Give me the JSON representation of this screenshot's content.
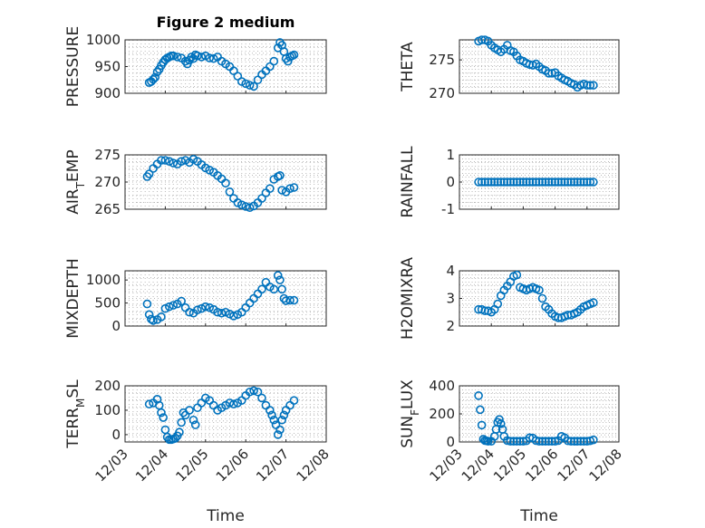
{
  "figure_title": "Figure 2 medium",
  "x_axis_label": "Time",
  "chart_data": [
    {
      "type": "scatter",
      "panel": "top-left",
      "ylabel": "PRESSURE",
      "title": "Figure 2 medium",
      "ylim": [
        900,
        1000
      ],
      "yticks": [
        "900",
        "950",
        "1000"
      ],
      "xlim": [
        0,
        5
      ],
      "xtick_labels": [
        "12/03",
        "12/04",
        "12/05",
        "12/06",
        "12/07",
        "12/08"
      ],
      "show_x_tick_labels": false,
      "grid": true,
      "series": [
        {
          "color": "#0072bd",
          "x": [
            0.6,
            0.65,
            0.7,
            0.75,
            0.8,
            0.85,
            0.9,
            0.95,
            1.0,
            1.05,
            1.1,
            1.15,
            1.2,
            1.3,
            1.4,
            1.5,
            1.55,
            1.6,
            1.65,
            1.7,
            1.75,
            1.8,
            1.9,
            2.0,
            2.1,
            2.2,
            2.3,
            2.4,
            2.5,
            2.6,
            2.7,
            2.8,
            2.9,
            3.0,
            3.1,
            3.2,
            3.3,
            3.4,
            3.5,
            3.6,
            3.7,
            3.8,
            3.85,
            3.9,
            3.95,
            4.0,
            4.05,
            4.1,
            4.15,
            4.2
          ],
          "y": [
            920,
            922,
            926,
            930,
            940,
            945,
            952,
            958,
            963,
            966,
            968,
            970,
            970,
            968,
            966,
            960,
            955,
            962,
            968,
            965,
            972,
            970,
            968,
            970,
            966,
            965,
            968,
            960,
            955,
            950,
            942,
            932,
            922,
            918,
            915,
            913,
            925,
            935,
            942,
            950,
            960,
            985,
            995,
            990,
            978,
            965,
            960,
            968,
            970,
            972
          ]
        }
      ]
    },
    {
      "type": "scatter",
      "panel": "top-right",
      "ylabel": "THETA",
      "ylim": [
        270,
        278
      ],
      "yticks": [
        "270",
        "275"
      ],
      "xlim": [
        0,
        5
      ],
      "xtick_labels": [
        "12/03",
        "12/04",
        "12/05",
        "12/06",
        "12/07",
        "12/08"
      ],
      "show_x_tick_labels": false,
      "grid": true,
      "series": [
        {
          "color": "#0072bd",
          "x": [
            0.6,
            0.7,
            0.8,
            0.9,
            1.0,
            1.1,
            1.2,
            1.3,
            1.4,
            1.5,
            1.6,
            1.7,
            1.8,
            1.9,
            2.0,
            2.1,
            2.2,
            2.3,
            2.4,
            2.5,
            2.6,
            2.7,
            2.8,
            2.9,
            3.0,
            3.1,
            3.2,
            3.3,
            3.4,
            3.5,
            3.6,
            3.7,
            3.8,
            3.9,
            4.0,
            4.1,
            4.2
          ],
          "y": [
            277.8,
            278.0,
            278.0,
            277.8,
            277.2,
            276.8,
            276.5,
            276.2,
            276.6,
            277.2,
            276.4,
            276.2,
            275.6,
            275.0,
            274.8,
            274.5,
            274.3,
            274.2,
            274.4,
            274.0,
            273.6,
            273.4,
            273.0,
            273.0,
            273.1,
            272.6,
            272.3,
            272.0,
            271.8,
            271.5,
            271.3,
            270.9,
            271.2,
            271.4,
            271.2,
            271.2,
            271.2
          ]
        }
      ]
    },
    {
      "type": "scatter",
      "panel": "row2-left",
      "ylabel": "AIR_TEMP",
      "ylim": [
        265,
        275
      ],
      "yticks": [
        "265",
        "270",
        "275"
      ],
      "xlim": [
        0,
        5
      ],
      "xtick_labels": [
        "12/03",
        "12/04",
        "12/05",
        "12/06",
        "12/07",
        "12/08"
      ],
      "show_x_tick_labels": false,
      "grid": true,
      "series": [
        {
          "color": "#0072bd",
          "x": [
            0.55,
            0.6,
            0.7,
            0.8,
            0.9,
            1.0,
            1.1,
            1.2,
            1.3,
            1.4,
            1.5,
            1.6,
            1.7,
            1.8,
            1.9,
            2.0,
            2.1,
            2.2,
            2.3,
            2.4,
            2.5,
            2.6,
            2.7,
            2.8,
            2.9,
            3.0,
            3.1,
            3.2,
            3.3,
            3.4,
            3.5,
            3.6,
            3.7,
            3.8,
            3.85,
            3.9,
            4.0,
            4.1,
            4.2
          ],
          "y": [
            271.0,
            271.5,
            272.5,
            273.3,
            274.0,
            274.0,
            273.8,
            273.5,
            273.3,
            273.8,
            274.0,
            273.6,
            274.2,
            273.8,
            273.2,
            272.6,
            272.2,
            271.8,
            271.2,
            270.6,
            269.8,
            268.2,
            267.0,
            266.2,
            265.8,
            265.5,
            265.3,
            265.6,
            266.2,
            267.0,
            268.0,
            268.8,
            270.5,
            271.0,
            271.2,
            268.5,
            268.2,
            268.8,
            269.0
          ]
        }
      ]
    },
    {
      "type": "scatter",
      "panel": "row2-right",
      "ylabel": "RAINFALL",
      "ylim": [
        -1,
        1
      ],
      "yticks": [
        "-1",
        "0",
        "1"
      ],
      "xlim": [
        0,
        5
      ],
      "xtick_labels": [
        "12/03",
        "12/04",
        "12/05",
        "12/06",
        "12/07",
        "12/08"
      ],
      "show_x_tick_labels": false,
      "grid": true,
      "series": [
        {
          "color": "#0072bd",
          "x": [
            0.6,
            0.7,
            0.8,
            0.9,
            1.0,
            1.1,
            1.2,
            1.3,
            1.4,
            1.5,
            1.6,
            1.7,
            1.8,
            1.9,
            2.0,
            2.1,
            2.2,
            2.3,
            2.4,
            2.5,
            2.6,
            2.7,
            2.8,
            2.9,
            3.0,
            3.1,
            3.2,
            3.3,
            3.4,
            3.5,
            3.6,
            3.7,
            3.8,
            3.9,
            4.0,
            4.1,
            4.2
          ],
          "y": [
            0,
            0,
            0,
            0,
            0,
            0,
            0,
            0,
            0,
            0,
            0,
            0,
            0,
            0,
            0,
            0,
            0,
            0,
            0,
            0,
            0,
            0,
            0,
            0,
            0,
            0,
            0,
            0,
            0,
            0,
            0,
            0,
            0,
            0,
            0,
            0,
            0
          ]
        }
      ]
    },
    {
      "type": "scatter",
      "panel": "row3-left",
      "ylabel": "MIXDEPTH",
      "ylim": [
        0,
        1200
      ],
      "yticks": [
        "0",
        "500",
        "1000"
      ],
      "xlim": [
        0,
        5
      ],
      "xtick_labels": [
        "12/03",
        "12/04",
        "12/05",
        "12/06",
        "12/07",
        "12/08"
      ],
      "show_x_tick_labels": false,
      "grid": true,
      "series": [
        {
          "color": "#0072bd",
          "x": [
            0.55,
            0.6,
            0.65,
            0.7,
            0.8,
            0.9,
            1.0,
            1.1,
            1.2,
            1.3,
            1.4,
            1.5,
            1.6,
            1.7,
            1.8,
            1.9,
            2.0,
            2.1,
            2.2,
            2.3,
            2.4,
            2.5,
            2.6,
            2.7,
            2.8,
            2.9,
            3.0,
            3.1,
            3.2,
            3.3,
            3.4,
            3.5,
            3.6,
            3.7,
            3.8,
            3.85,
            3.9,
            3.95,
            4.0,
            4.1,
            4.2
          ],
          "y": [
            480,
            250,
            150,
            120,
            140,
            200,
            380,
            420,
            450,
            480,
            540,
            400,
            300,
            280,
            350,
            380,
            420,
            400,
            360,
            300,
            280,
            300,
            260,
            220,
            250,
            300,
            400,
            500,
            600,
            700,
            800,
            950,
            850,
            800,
            1100,
            1000,
            800,
            600,
            550,
            560,
            560
          ]
        }
      ]
    },
    {
      "type": "scatter",
      "panel": "row3-right",
      "ylabel": "H2OMIXRA",
      "ylim": [
        2,
        4
      ],
      "yticks": [
        "2",
        "3",
        "4"
      ],
      "xlim": [
        0,
        5
      ],
      "xtick_labels": [
        "12/03",
        "12/04",
        "12/05",
        "12/06",
        "12/07",
        "12/08"
      ],
      "show_x_tick_labels": false,
      "grid": true,
      "series": [
        {
          "color": "#0072bd",
          "x": [
            0.6,
            0.7,
            0.8,
            0.9,
            1.0,
            1.1,
            1.2,
            1.3,
            1.4,
            1.5,
            1.6,
            1.7,
            1.8,
            1.9,
            2.0,
            2.1,
            2.2,
            2.3,
            2.4,
            2.5,
            2.6,
            2.7,
            2.8,
            2.9,
            3.0,
            3.1,
            3.2,
            3.3,
            3.4,
            3.5,
            3.6,
            3.7,
            3.8,
            3.9,
            4.0,
            4.1,
            4.2
          ],
          "y": [
            2.6,
            2.6,
            2.55,
            2.55,
            2.5,
            2.6,
            2.8,
            3.1,
            3.3,
            3.45,
            3.6,
            3.8,
            3.85,
            3.4,
            3.35,
            3.3,
            3.35,
            3.4,
            3.35,
            3.3,
            3.0,
            2.7,
            2.6,
            2.45,
            2.35,
            2.3,
            2.3,
            2.35,
            2.4,
            2.4,
            2.45,
            2.5,
            2.6,
            2.7,
            2.75,
            2.8,
            2.85
          ]
        }
      ]
    },
    {
      "type": "scatter",
      "panel": "bottom-left",
      "ylabel": "TERR_MSL",
      "ylim": [
        -30,
        200
      ],
      "yticks": [
        "0",
        "100",
        "200"
      ],
      "xlim": [
        0,
        5
      ],
      "xtick_labels": [
        "12/03",
        "12/04",
        "12/05",
        "12/06",
        "12/07",
        "12/08"
      ],
      "show_x_tick_labels": true,
      "grid": true,
      "series": [
        {
          "color": "#0072bd",
          "x": [
            0.6,
            0.7,
            0.8,
            0.85,
            0.9,
            0.95,
            1.0,
            1.05,
            1.1,
            1.15,
            1.2,
            1.25,
            1.3,
            1.35,
            1.4,
            1.45,
            1.5,
            1.6,
            1.7,
            1.75,
            1.8,
            1.9,
            2.0,
            2.1,
            2.2,
            2.3,
            2.4,
            2.5,
            2.6,
            2.7,
            2.8,
            2.9,
            3.0,
            3.1,
            3.2,
            3.3,
            3.4,
            3.5,
            3.6,
            3.65,
            3.7,
            3.75,
            3.8,
            3.85,
            3.9,
            3.95,
            4.0,
            4.1,
            4.2
          ],
          "y": [
            125,
            130,
            145,
            120,
            90,
            70,
            20,
            -10,
            -20,
            -20,
            -18,
            -15,
            -5,
            10,
            50,
            90,
            80,
            100,
            60,
            40,
            110,
            130,
            150,
            140,
            120,
            100,
            110,
            120,
            130,
            125,
            130,
            140,
            160,
            175,
            180,
            175,
            150,
            120,
            100,
            80,
            60,
            40,
            0,
            20,
            60,
            80,
            100,
            120,
            140
          ]
        }
      ]
    },
    {
      "type": "scatter",
      "panel": "bottom-right",
      "ylabel": "SUN_FLUX",
      "ylim": [
        0,
        400
      ],
      "yticks": [
        "0",
        "200",
        "400"
      ],
      "xlim": [
        0,
        5
      ],
      "xtick_labels": [
        "12/03",
        "12/04",
        "12/05",
        "12/06",
        "12/07",
        "12/08"
      ],
      "show_x_tick_labels": true,
      "grid": true,
      "series": [
        {
          "color": "#0072bd",
          "x": [
            0.6,
            0.65,
            0.7,
            0.75,
            0.8,
            0.85,
            0.9,
            1.0,
            1.1,
            1.15,
            1.2,
            1.25,
            1.3,
            1.35,
            1.4,
            1.5,
            1.6,
            1.7,
            1.8,
            1.9,
            2.0,
            2.1,
            2.2,
            2.3,
            2.4,
            2.5,
            2.6,
            2.7,
            2.8,
            2.9,
            3.0,
            3.1,
            3.2,
            3.3,
            3.4,
            3.5,
            3.6,
            3.7,
            3.8,
            3.9,
            4.0,
            4.1,
            4.2
          ],
          "y": [
            330,
            230,
            120,
            20,
            10,
            8,
            5,
            5,
            40,
            90,
            140,
            160,
            130,
            90,
            40,
            10,
            5,
            5,
            5,
            5,
            5,
            8,
            30,
            28,
            10,
            5,
            5,
            5,
            5,
            5,
            5,
            10,
            40,
            30,
            8,
            5,
            5,
            5,
            5,
            5,
            5,
            8,
            15
          ]
        }
      ]
    }
  ]
}
